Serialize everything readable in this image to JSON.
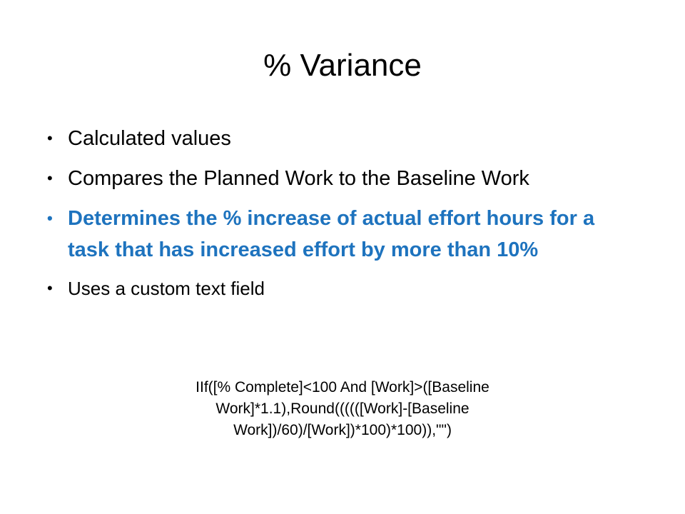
{
  "title": "% Variance",
  "bullets": [
    {
      "text": "Calculated values",
      "emphasis": false
    },
    {
      "text": "Compares the Planned Work to the Baseline Work",
      "emphasis": false
    },
    {
      "text": "Determines the % increase of actual effort hours for a task that has increased effort by more than 10%",
      "emphasis": true
    },
    {
      "text": "Uses a custom text field",
      "emphasis": false
    }
  ],
  "formula": "IIf([% Complete]<100 And [Work]>([Baseline Work]*1.1),Round((((([Work]-[Baseline Work])/60)/[Work])*100)*100)),\"\")"
}
